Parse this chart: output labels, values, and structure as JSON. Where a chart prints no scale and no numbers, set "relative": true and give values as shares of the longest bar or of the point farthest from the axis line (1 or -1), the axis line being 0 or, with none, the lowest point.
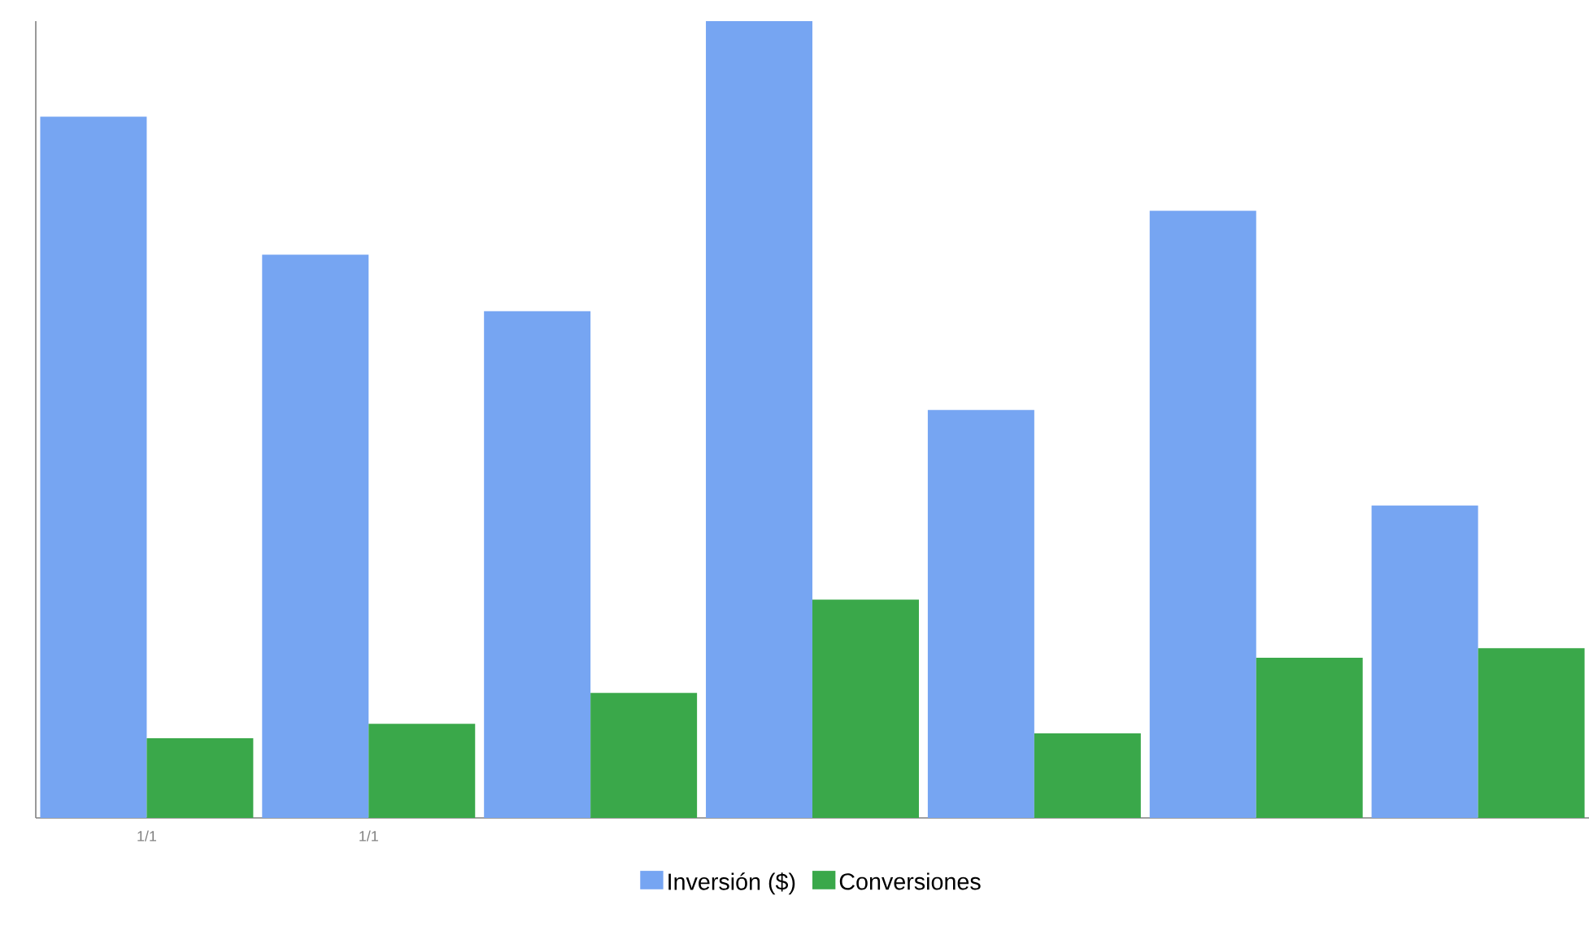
{
  "chart_data": {
    "type": "bar",
    "relative": true,
    "categories": [
      "1/1",
      "1/1",
      null,
      null,
      null,
      null,
      null
    ],
    "series": [
      {
        "name": "Inversión ($)",
        "color": "#76a5f2",
        "values": [
          0.88,
          0.707,
          0.636,
          1,
          0.512,
          0.762,
          0.392
        ]
      },
      {
        "name": "Conversiones",
        "color": "#3aa84a",
        "values": [
          0.1,
          0.118,
          0.157,
          0.274,
          0.106,
          0.201,
          0.213
        ]
      }
    ],
    "legend": "bottom"
  }
}
